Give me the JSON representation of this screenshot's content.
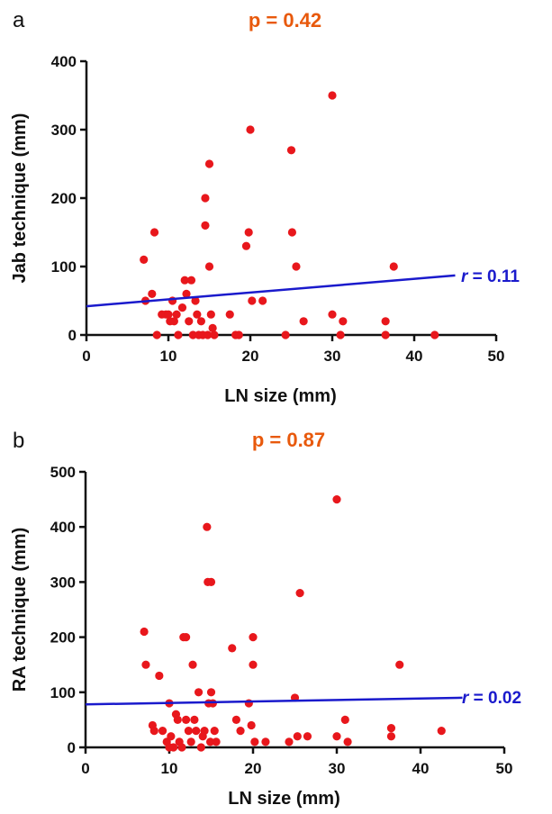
{
  "chart_data": [
    {
      "panel_label": "a",
      "type": "scatter",
      "title": "p = 0.42",
      "xlabel": "LN size (mm)",
      "ylabel": "Jab technique (mm)",
      "xlim": [
        0,
        50
      ],
      "ylim": [
        0,
        400
      ],
      "xticks": [
        0,
        10,
        20,
        30,
        40,
        50
      ],
      "yticks": [
        0,
        100,
        200,
        300,
        400
      ],
      "grid": false,
      "point_color": "#e8171c",
      "line_color": "#1a1acc",
      "title_color": "#e8590c",
      "regression": {
        "x": [
          0,
          45
        ],
        "y": [
          42,
          87
        ],
        "label_r": "r",
        "label_value": " = 0.11"
      },
      "points": [
        [
          7,
          110
        ],
        [
          7.2,
          50
        ],
        [
          8,
          60
        ],
        [
          8.3,
          150
        ],
        [
          8.6,
          0
        ],
        [
          9.2,
          30
        ],
        [
          9.7,
          30
        ],
        [
          10,
          30
        ],
        [
          10.2,
          20
        ],
        [
          10.5,
          50
        ],
        [
          10.7,
          20
        ],
        [
          11,
          30
        ],
        [
          11.2,
          0
        ],
        [
          11.7,
          40
        ],
        [
          12,
          80
        ],
        [
          12.2,
          60
        ],
        [
          12.5,
          20
        ],
        [
          12.8,
          80
        ],
        [
          13,
          0
        ],
        [
          13.3,
          50
        ],
        [
          13.5,
          30
        ],
        [
          13.7,
          0
        ],
        [
          14,
          20
        ],
        [
          14.2,
          0
        ],
        [
          14.5,
          200
        ],
        [
          14.5,
          160
        ],
        [
          14.8,
          0
        ],
        [
          15,
          250
        ],
        [
          15,
          100
        ],
        [
          15.2,
          30
        ],
        [
          15.4,
          10
        ],
        [
          15.6,
          0
        ],
        [
          17.5,
          30
        ],
        [
          18.2,
          0
        ],
        [
          18.6,
          0
        ],
        [
          19.5,
          130
        ],
        [
          19.8,
          150
        ],
        [
          20,
          300
        ],
        [
          20.2,
          50
        ],
        [
          21.5,
          50
        ],
        [
          24.3,
          0
        ],
        [
          25,
          270
        ],
        [
          25.1,
          150
        ],
        [
          25.6,
          100
        ],
        [
          26.5,
          20
        ],
        [
          30,
          350
        ],
        [
          30,
          30
        ],
        [
          31,
          0
        ],
        [
          31.3,
          20
        ],
        [
          36.5,
          20
        ],
        [
          36.5,
          0
        ],
        [
          37.5,
          100
        ],
        [
          42.5,
          0
        ]
      ]
    },
    {
      "panel_label": "b",
      "type": "scatter",
      "title": "p = 0.87",
      "xlabel": "LN size (mm)",
      "ylabel": "RA technique (mm)",
      "xlim": [
        0,
        50
      ],
      "ylim": [
        0,
        500
      ],
      "xticks": [
        0,
        10,
        20,
        30,
        40,
        50
      ],
      "yticks": [
        0,
        100,
        200,
        300,
        400,
        500
      ],
      "grid": false,
      "point_color": "#e8171c",
      "line_color": "#1a1acc",
      "title_color": "#e8590c",
      "regression": {
        "x": [
          0,
          45
        ],
        "y": [
          78,
          90
        ],
        "label_r": "r",
        "label_value": " = 0.02"
      },
      "points": [
        [
          7,
          210
        ],
        [
          7.2,
          150
        ],
        [
          8,
          40
        ],
        [
          8.2,
          30
        ],
        [
          8.8,
          130
        ],
        [
          9.2,
          30
        ],
        [
          9.7,
          10
        ],
        [
          10,
          0
        ],
        [
          10,
          80
        ],
        [
          10.2,
          20
        ],
        [
          10.5,
          0
        ],
        [
          10.8,
          60
        ],
        [
          11,
          50
        ],
        [
          11.2,
          10
        ],
        [
          11.5,
          0
        ],
        [
          11.7,
          200
        ],
        [
          12,
          200
        ],
        [
          12,
          50
        ],
        [
          12.3,
          30
        ],
        [
          12.6,
          10
        ],
        [
          12.8,
          150
        ],
        [
          13,
          50
        ],
        [
          13.2,
          30
        ],
        [
          13.5,
          100
        ],
        [
          13.8,
          0
        ],
        [
          14,
          20
        ],
        [
          14.2,
          30
        ],
        [
          14.5,
          400
        ],
        [
          14.6,
          300
        ],
        [
          14.7,
          80
        ],
        [
          14.9,
          10
        ],
        [
          15,
          300
        ],
        [
          15,
          100
        ],
        [
          15.2,
          80
        ],
        [
          15.4,
          30
        ],
        [
          15.6,
          10
        ],
        [
          17.5,
          180
        ],
        [
          18,
          50
        ],
        [
          18.5,
          30
        ],
        [
          19.5,
          80
        ],
        [
          19.8,
          40
        ],
        [
          20,
          200
        ],
        [
          20,
          150
        ],
        [
          20.2,
          10
        ],
        [
          21.5,
          10
        ],
        [
          24.3,
          10
        ],
        [
          25,
          90
        ],
        [
          25.3,
          20
        ],
        [
          25.6,
          280
        ],
        [
          26.5,
          20
        ],
        [
          30,
          450
        ],
        [
          30,
          20
        ],
        [
          31,
          50
        ],
        [
          31.3,
          10
        ],
        [
          36.5,
          35
        ],
        [
          36.5,
          20
        ],
        [
          37.5,
          150
        ],
        [
          42.5,
          30
        ]
      ]
    }
  ]
}
